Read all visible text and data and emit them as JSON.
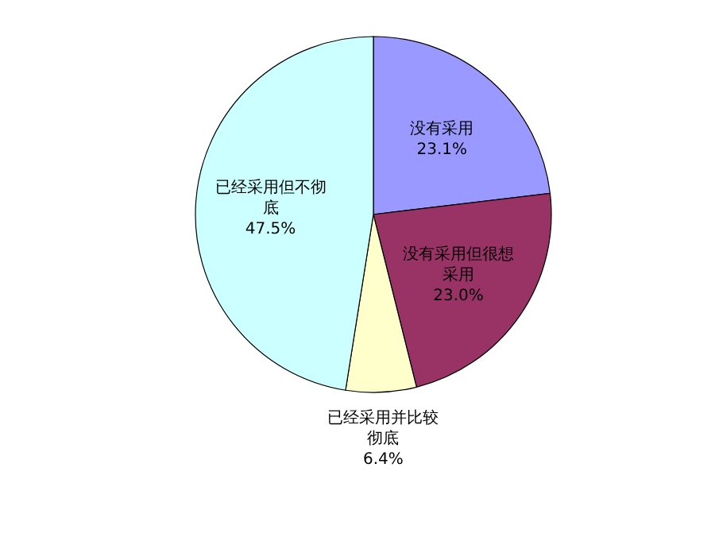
{
  "chart_data": {
    "type": "pie",
    "categories": [
      "没有采用",
      "没有采用但很想采用",
      "已经采用并比较彻底",
      "已经采用但不彻底"
    ],
    "values": [
      23.1,
      23.0,
      6.4,
      47.5
    ],
    "colors": [
      "#9999ff",
      "#993366",
      "#ffffcc",
      "#ccffff"
    ],
    "value_labels": [
      "23.1%",
      "23.0%",
      "6.4%",
      "47.5%"
    ],
    "legend": false
  }
}
